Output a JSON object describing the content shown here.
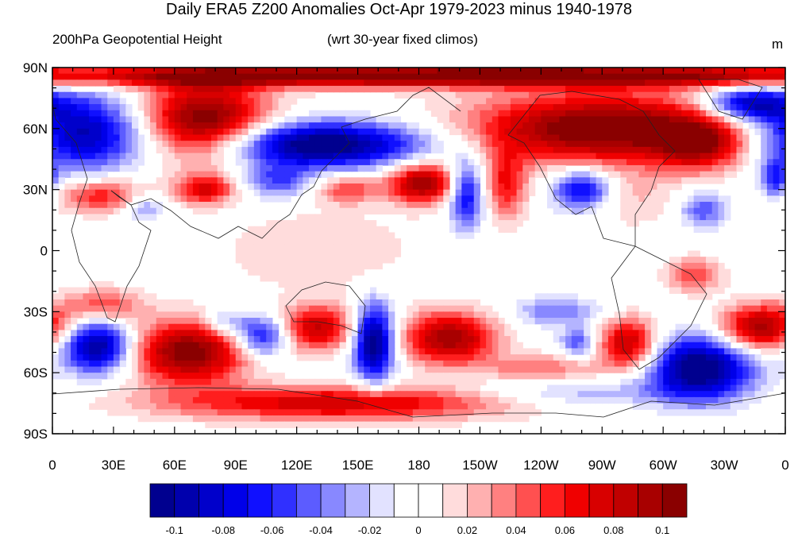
{
  "title": "Daily ERA5 Z200 Anomalies Oct-Apr 1979-2023 minus 1940-1978",
  "left_string": "200hPa Geopotential Height",
  "center_string": "(wrt 30-year fixed climos)",
  "units": "m",
  "axes": {
    "y_ticks": [
      "90N",
      "60N",
      "30N",
      "0",
      "30S",
      "60S",
      "90S"
    ],
    "x_ticks": [
      "0",
      "30E",
      "60E",
      "90E",
      "120E",
      "150E",
      "180",
      "150W",
      "120W",
      "90W",
      "60W",
      "30W",
      "0"
    ]
  },
  "colorbar": {
    "colors": [
      "#00008f",
      "#0000ad",
      "#0000cb",
      "#0000e9",
      "#1010ff",
      "#3030ff",
      "#5c5cff",
      "#8888ff",
      "#b4b4ff",
      "#e2e2ff",
      "#ffffff",
      "#ffffff",
      "#ffdcdc",
      "#ffb0b0",
      "#ff8080",
      "#ff5050",
      "#ff1e1e",
      "#f00000",
      "#d80000",
      "#c00000",
      "#a80000",
      "#8a0000"
    ],
    "labels": [
      "-0.1",
      "-0.08",
      "-0.06",
      "-0.04",
      "-0.02",
      "0",
      "0.02",
      "0.04",
      "0.06",
      "0.08",
      "0.1"
    ]
  },
  "anomalies": [
    {
      "lon": 200,
      "lat": 86,
      "val": 0.12,
      "sx": 180,
      "sy": 4
    },
    {
      "lon": 15,
      "lat": 58,
      "val": -0.1,
      "sx": 22,
      "sy": 13
    },
    {
      "lon": 75,
      "lat": 63,
      "val": 0.12,
      "sx": 22,
      "sy": 14
    },
    {
      "lon": 130,
      "lat": 52,
      "val": -0.12,
      "sx": 38,
      "sy": 8
    },
    {
      "lon": 110,
      "lat": 34,
      "val": -0.05,
      "sx": 12,
      "sy": 6
    },
    {
      "lon": 25,
      "lat": 27,
      "val": 0.06,
      "sx": 16,
      "sy": 6
    },
    {
      "lon": 75,
      "lat": 30,
      "val": 0.07,
      "sx": 10,
      "sy": 5
    },
    {
      "lon": 45,
      "lat": 22,
      "val": -0.04,
      "sx": 8,
      "sy": 5
    },
    {
      "lon": 145,
      "lat": 30,
      "val": 0.05,
      "sx": 10,
      "sy": 5
    },
    {
      "lon": 182,
      "lat": 33,
      "val": 0.1,
      "sx": 12,
      "sy": 7
    },
    {
      "lon": 203,
      "lat": 28,
      "val": -0.08,
      "sx": 6,
      "sy": 12
    },
    {
      "lon": 223,
      "lat": 32,
      "val": 0.06,
      "sx": 7,
      "sy": 12
    },
    {
      "lon": 270,
      "lat": 60,
      "val": 0.12,
      "sx": 45,
      "sy": 12
    },
    {
      "lon": 318,
      "lat": 52,
      "val": 0.07,
      "sx": 15,
      "sy": 9
    },
    {
      "lon": 342,
      "lat": 72,
      "val": -0.09,
      "sx": 16,
      "sy": 6
    },
    {
      "lon": 260,
      "lat": 30,
      "val": -0.08,
      "sx": 10,
      "sy": 7
    },
    {
      "lon": 285,
      "lat": 25,
      "val": 0.02,
      "sx": 15,
      "sy": 10
    },
    {
      "lon": 320,
      "lat": 20,
      "val": -0.05,
      "sx": 8,
      "sy": 6
    },
    {
      "lon": 355,
      "lat": 35,
      "val": -0.06,
      "sx": 5,
      "sy": 7
    },
    {
      "lon": 130,
      "lat": 0,
      "val": 0.02,
      "sx": 35,
      "sy": 15
    },
    {
      "lon": 25,
      "lat": -27,
      "val": 0.05,
      "sx": 14,
      "sy": 6
    },
    {
      "lon": 22,
      "lat": -47,
      "val": -0.11,
      "sx": 12,
      "sy": 9
    },
    {
      "lon": 67,
      "lat": -50,
      "val": 0.11,
      "sx": 20,
      "sy": 11
    },
    {
      "lon": 85,
      "lat": -35,
      "val": -0.04,
      "sx": 8,
      "sy": 5
    },
    {
      "lon": 103,
      "lat": -42,
      "val": -0.08,
      "sx": 9,
      "sy": 7
    },
    {
      "lon": 130,
      "lat": -38,
      "val": 0.08,
      "sx": 13,
      "sy": 8
    },
    {
      "lon": 158,
      "lat": -45,
      "val": -0.12,
      "sx": 7,
      "sy": 13
    },
    {
      "lon": 195,
      "lat": -43,
      "val": 0.1,
      "sx": 16,
      "sy": 9
    },
    {
      "lon": 248,
      "lat": -30,
      "val": -0.04,
      "sx": 15,
      "sy": 5
    },
    {
      "lon": 258,
      "lat": -45,
      "val": -0.05,
      "sx": 6,
      "sy": 5
    },
    {
      "lon": 283,
      "lat": -46,
      "val": 0.09,
      "sx": 10,
      "sy": 9
    },
    {
      "lon": 318,
      "lat": -58,
      "val": -0.12,
      "sx": 18,
      "sy": 11
    },
    {
      "lon": 348,
      "lat": -38,
      "val": 0.1,
      "sx": 14,
      "sy": 8
    },
    {
      "lon": 315,
      "lat": -12,
      "val": 0.05,
      "sx": 10,
      "sy": 6
    },
    {
      "lon": 140,
      "lat": -75,
      "val": 0.08,
      "sx": 60,
      "sy": 6
    },
    {
      "lon": 255,
      "lat": -70,
      "val": -0.03,
      "sx": 35,
      "sy": 5
    },
    {
      "lon": 240,
      "lat": -58,
      "val": 0.04,
      "sx": 20,
      "sy": 5
    }
  ]
}
